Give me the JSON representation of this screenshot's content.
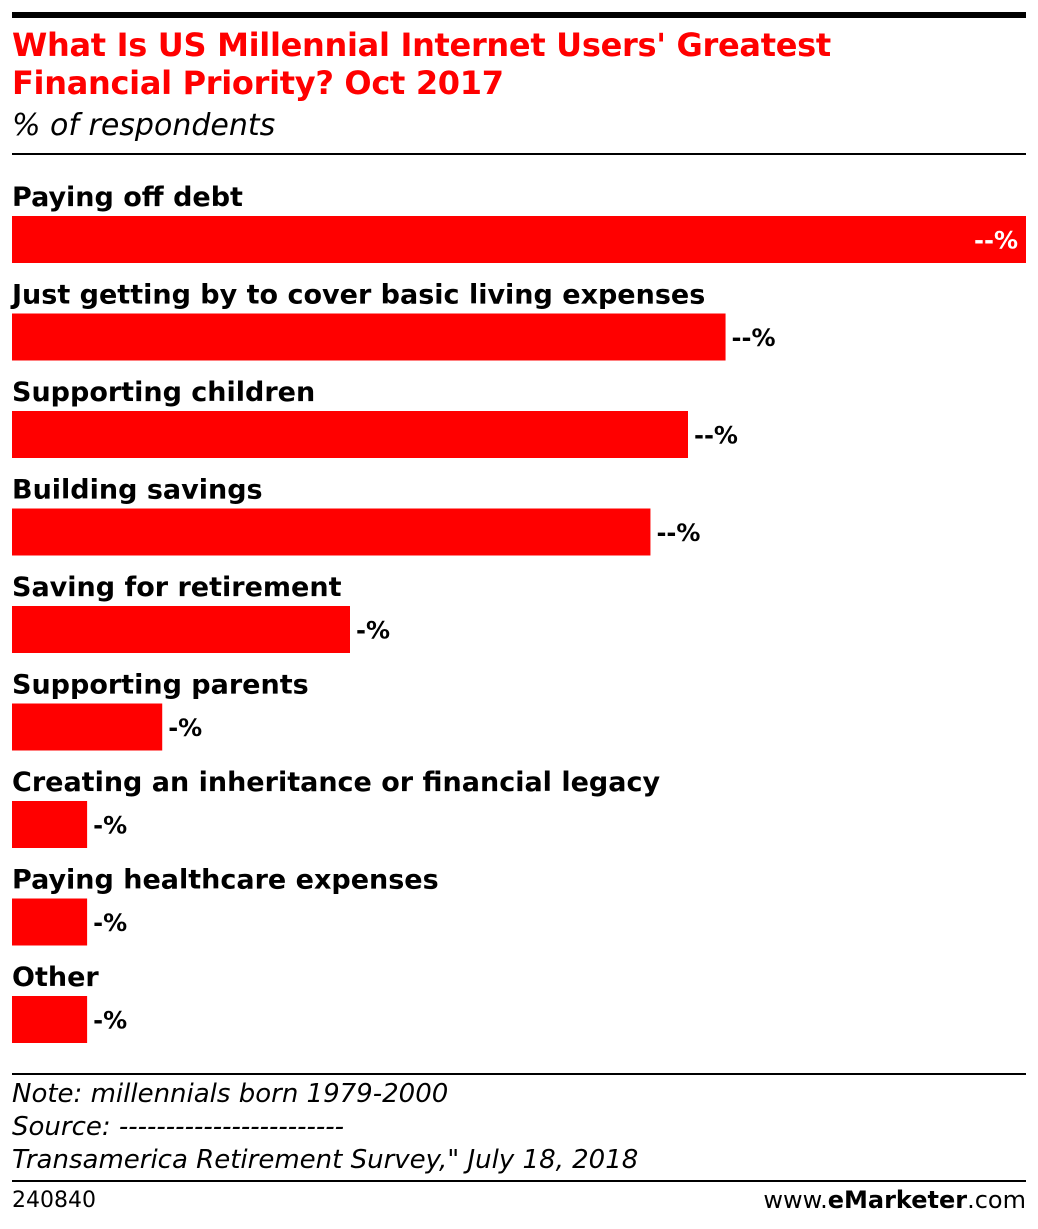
{
  "header": {
    "title_line1": "What Is US Millennial Internet Users' Greatest",
    "title_line2": "Financial Priority? Oct 2017",
    "subtitle": "% of respondents"
  },
  "colors": {
    "bar": "#ff0000",
    "title": "#ff0000",
    "value_inside": "#ffffff",
    "value_outside": "#000000"
  },
  "chart_data": {
    "type": "bar",
    "orientation": "horizontal",
    "title": "What Is US Millennial Internet Users' Greatest Financial Priority? Oct 2017",
    "subtitle": "% of respondents",
    "xlabel": "",
    "ylabel": "",
    "grid": false,
    "legend": "none",
    "categories": [
      "Paying off debt",
      "Just getting by to cover basic living expenses",
      "Supporting children",
      "Building savings",
      "Saving for retirement",
      "Supporting parents",
      "Creating an inheritance or financial legacy",
      "Paying healthcare expenses",
      "Other"
    ],
    "values": [
      27,
      19,
      18,
      17,
      9,
      4,
      2,
      2,
      2
    ],
    "value_labels": [
      "--%",
      "--%",
      "--%",
      "--%",
      "-%",
      "-%",
      "-%",
      "-%",
      "-%"
    ],
    "xlim": [
      0,
      27
    ]
  },
  "footer": {
    "note": "Note: millennials born 1979-2000",
    "source": "Source: ------------------------",
    "source_detail": "Transamerica Retirement Survey,\" July 18, 2018",
    "chart_id": "240840",
    "brand_prefix": "www.",
    "brand_name": "eMarketer",
    "brand_suffix": ".com"
  }
}
